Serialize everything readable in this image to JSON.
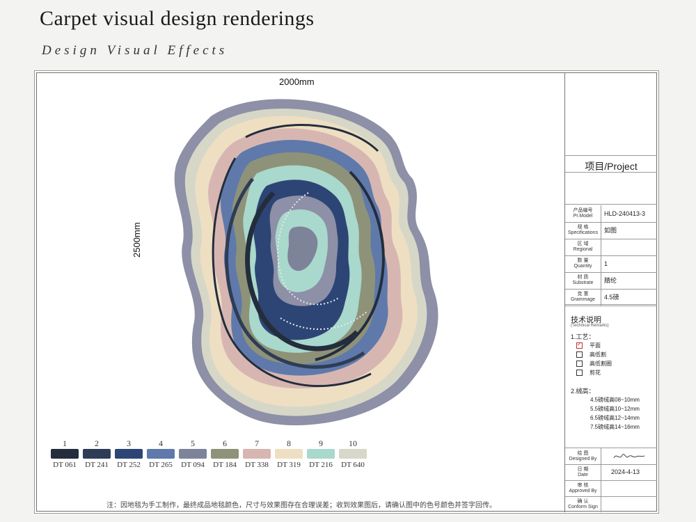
{
  "header": {
    "title": "Carpet visual design renderings",
    "subtitle": "Design Visual Effects"
  },
  "dimensions": {
    "width": "2000mm",
    "height": "2500mm"
  },
  "colors": {
    "items": [
      {
        "number": "1",
        "code": "DT 061",
        "hex": "#232d3c"
      },
      {
        "number": "2",
        "code": "DT 241",
        "hex": "#2e3d55"
      },
      {
        "number": "3",
        "code": "DT 252",
        "hex": "#2d4575"
      },
      {
        "number": "4",
        "code": "DT 265",
        "hex": "#5f79ab"
      },
      {
        "number": "5",
        "code": "DT 094",
        "hex": "#7d8398"
      },
      {
        "number": "6",
        "code": "DT 184",
        "hex": "#8e9278"
      },
      {
        "number": "7",
        "code": "DT 338",
        "hex": "#d7b6b2"
      },
      {
        "number": "8",
        "code": "DT 319",
        "hex": "#eedfc2"
      },
      {
        "number": "9",
        "code": "DT 216",
        "hex": "#a9d8cc"
      },
      {
        "number": "10",
        "code": "DT 640",
        "hex": "#d8d8ca"
      }
    ]
  },
  "note": "注：因地毯为手工制作，最终成品地毯颜色，尺寸与效果图存在合理误差；收到效果图后，请确认图中的色号颜色并签字回传。",
  "sidebar": {
    "project": "项目/Project",
    "specs": [
      {
        "label_cn": "产品编号",
        "label_en": "Pr.Model",
        "value": "HLD-240413-3"
      },
      {
        "label_cn": "规 格",
        "label_en": "Specifications",
        "value": "如图"
      },
      {
        "label_cn": "区 域",
        "label_en": "Regional",
        "value": ""
      },
      {
        "label_cn": "数 量",
        "label_en": "Quantity",
        "value": "1"
      },
      {
        "label_cn": "材 质",
        "label_en": "Substrate",
        "value": "腈纶"
      },
      {
        "label_cn": "克 重",
        "label_en": "Grammage",
        "value": "4.5磅"
      }
    ],
    "tech": {
      "title": "技术说明",
      "subtitle": "(Technical Remarks)",
      "process_title": "1.工艺：",
      "process_options": [
        {
          "label": "平面",
          "checked": true
        },
        {
          "label": "高低割",
          "checked": false
        },
        {
          "label": "高低割圈",
          "checked": false
        },
        {
          "label": "剪花",
          "checked": false
        }
      ],
      "pile_title": "2.绒高：",
      "pile_rows": [
        "4.5磅绒高08~10mm",
        "5.5磅绒高10~12mm",
        "6.5磅绒高12~14mm",
        "7.5磅绒高14~16mm"
      ]
    },
    "signatures": [
      {
        "label_cn": "绘 图",
        "label_en": "Designed By",
        "value": ""
      },
      {
        "label_cn": "日 期",
        "label_en": "Date",
        "value": "2024-4-13"
      },
      {
        "label_cn": "审 核",
        "label_en": "Approved By",
        "value": ""
      },
      {
        "label_cn": "确 认",
        "label_en": "Conform Sign",
        "value": ""
      }
    ]
  }
}
